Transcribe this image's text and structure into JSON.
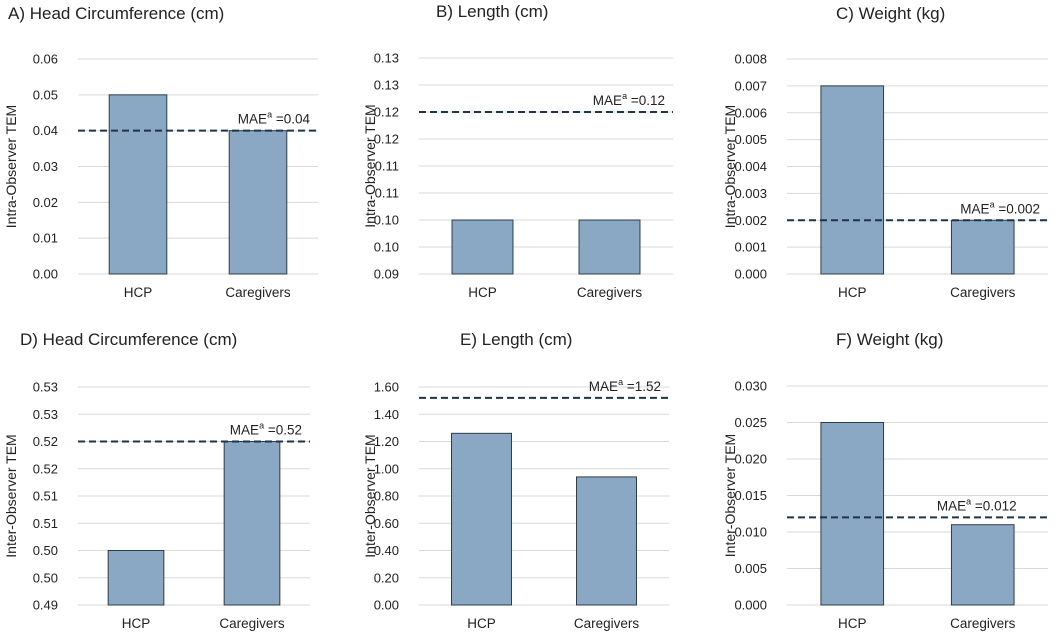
{
  "colors": {
    "bar": "#8aa7c4",
    "bar_edge": "#2f3d4a",
    "grid": "#d9d9d9",
    "ref_line": "#1f3349"
  },
  "chart_data": [
    {
      "type": "bar",
      "panel": "A",
      "title": "A) Head Circumference (cm)",
      "ylabel": "Intra-Observer TEM",
      "categories": [
        "HCP",
        "Caregivers"
      ],
      "values": [
        0.05,
        0.04
      ],
      "ylim": [
        0,
        0.06
      ],
      "yticks": [
        0,
        0.01,
        0.02,
        0.03,
        0.04,
        0.05,
        0.06
      ],
      "ytick_labels": [
        "0.00",
        "0.01",
        "0.02",
        "0.03",
        "0.04",
        "0.05",
        "0.06"
      ],
      "ref_value": 0.04,
      "ref_prefix": "MAE",
      "ref_sup": "a",
      "ref_suffix": " =0.04",
      "ref_label_pos": "right"
    },
    {
      "type": "bar",
      "panel": "B",
      "title": "B) Length (cm)",
      "ylabel": "Intra-Observer TEM",
      "categories": [
        "HCP",
        "Caregivers"
      ],
      "values": [
        0.1,
        0.1
      ],
      "ylim": [
        0.09,
        0.13
      ],
      "yticks": [
        0.09,
        0.095,
        0.1,
        0.105,
        0.11,
        0.115,
        0.12,
        0.125,
        0.13
      ],
      "ytick_labels": [
        "0.09",
        "0.10",
        "0.10",
        "0.11",
        "0.11",
        "0.12",
        "0.12",
        "0.13",
        "0.13"
      ],
      "ref_value": 0.12,
      "ref_prefix": "MAE",
      "ref_sup": "a",
      "ref_suffix": " =0.12",
      "ref_label_pos": "right"
    },
    {
      "type": "bar",
      "panel": "C",
      "title": "C) Weight (kg)",
      "ylabel": "Intra-Observer TEM",
      "categories": [
        "HCP",
        "Caregivers"
      ],
      "values": [
        0.007,
        0.002
      ],
      "ylim": [
        0,
        0.008
      ],
      "yticks": [
        0,
        0.001,
        0.002,
        0.003,
        0.004,
        0.005,
        0.006,
        0.007,
        0.008
      ],
      "ytick_labels": [
        "0.000",
        "0.001",
        "0.002",
        "0.003",
        "0.004",
        "0.005",
        "0.006",
        "0.007",
        "0.008"
      ],
      "ref_value": 0.002,
      "ref_prefix": "MAE",
      "ref_sup": "a",
      "ref_suffix": " =0.002",
      "ref_label_pos": "right"
    },
    {
      "type": "bar",
      "panel": "D",
      "title": "D) Head Circumference (cm)",
      "ylabel": "Inter-Observer TEM",
      "categories": [
        "HCP",
        "Caregivers"
      ],
      "values": [
        0.5,
        0.52
      ],
      "ylim": [
        0.49,
        0.53
      ],
      "yticks": [
        0.49,
        0.495,
        0.5,
        0.505,
        0.51,
        0.515,
        0.52,
        0.525,
        0.53
      ],
      "ytick_labels": [
        "0.49",
        "0.50",
        "0.50",
        "0.51",
        "0.51",
        "0.52",
        "0.52",
        "0.53",
        "0.53"
      ],
      "ref_value": 0.52,
      "ref_prefix": "MAE",
      "ref_sup": "a",
      "ref_suffix": " =0.52",
      "ref_label_pos": "right"
    },
    {
      "type": "bar",
      "panel": "E",
      "title": "E) Length (cm)",
      "ylabel": "Inter-Observer TEM",
      "categories": [
        "HCP",
        "Caregivers"
      ],
      "values": [
        1.26,
        0.94
      ],
      "ylim": [
        0,
        1.6
      ],
      "yticks": [
        0,
        0.2,
        0.4,
        0.6,
        0.8,
        1.0,
        1.2,
        1.4,
        1.6
      ],
      "ytick_labels": [
        "0.00",
        "0.20",
        "0.40",
        "0.60",
        "0.80",
        "1.00",
        "1.20",
        "1.40",
        "1.60"
      ],
      "ref_value": 1.52,
      "ref_prefix": "MAE",
      "ref_sup": "a",
      "ref_suffix": " =1.52",
      "ref_label_pos": "right"
    },
    {
      "type": "bar",
      "panel": "F",
      "title": "F) Weight (kg)",
      "ylabel": "Inter-Observer TEM",
      "categories": [
        "HCP",
        "Caregivers"
      ],
      "values": [
        0.025,
        0.011
      ],
      "ylim": [
        0,
        0.03
      ],
      "yticks": [
        0,
        0.005,
        0.01,
        0.015,
        0.02,
        0.025,
        0.03
      ],
      "ytick_labels": [
        "0.000",
        "0.005",
        "0.010",
        "0.015",
        "0.020",
        "0.025",
        "0.030"
      ],
      "ref_value": 0.012,
      "ref_prefix": "MAE",
      "ref_sup": "a",
      "ref_suffix": " =0.012",
      "ref_label_pos": "center"
    }
  ]
}
